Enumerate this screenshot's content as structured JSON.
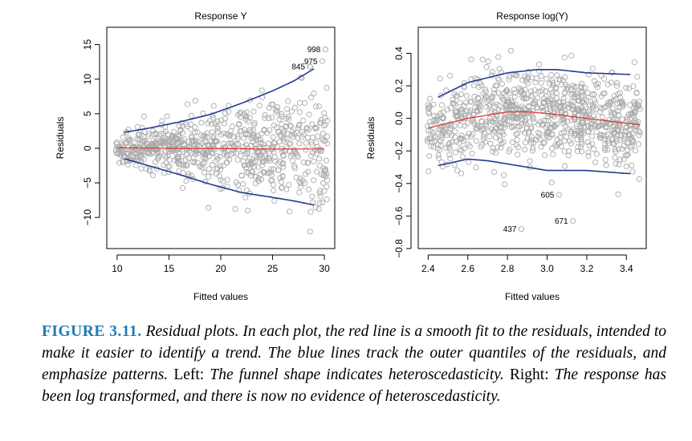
{
  "chart_data": [
    {
      "type": "scatter",
      "title": "Response Y",
      "xlabel": "Fitted values",
      "ylabel": "Residuals",
      "xlim": [
        9,
        31
      ],
      "ylim": [
        -14.5,
        17.5
      ],
      "xticks": [
        10,
        15,
        20,
        25,
        30
      ],
      "yticks": [
        -10,
        -5,
        0,
        5,
        10,
        15
      ],
      "tick_labels_x": [
        "10",
        "15",
        "20",
        "25",
        "30"
      ],
      "tick_labels_y": [
        "−10",
        "−5",
        "0",
        "5",
        "10",
        "15"
      ],
      "point_color": "#a9a9a9",
      "smooth_color": "#e0302b",
      "quantile_color": "#233c93",
      "scatter_cloud": {
        "n": 760,
        "x_range": [
          9.8,
          30.3
        ],
        "spread_model": "funnel",
        "spread_at_min": 1.6,
        "spread_at_max": 8.5
      },
      "smooth_line": {
        "x": [
          10,
          15,
          20,
          25,
          30
        ],
        "y": [
          0.1,
          0.0,
          -0.05,
          -0.1,
          -0.1
        ]
      },
      "upper_quantile": {
        "x": [
          10.7,
          13,
          16,
          19,
          22,
          25,
          27,
          29
        ],
        "y": [
          2.3,
          2.9,
          3.8,
          4.9,
          6.5,
          8.3,
          9.7,
          11.5
        ]
      },
      "lower_quantile": {
        "x": [
          10.7,
          13,
          16,
          19,
          22,
          25,
          27,
          29
        ],
        "y": [
          -1.5,
          -2.5,
          -3.8,
          -5.2,
          -6.4,
          -7.1,
          -7.6,
          -8.2
        ]
      },
      "outliers": [
        {
          "label": "998",
          "x": 30.1,
          "y": 14.3
        },
        {
          "label": "975",
          "x": 29.8,
          "y": 12.6
        },
        {
          "label": "845",
          "x": 28.6,
          "y": 11.8
        }
      ]
    },
    {
      "type": "scatter",
      "title": "Response log(Y)",
      "xlabel": "Fitted values",
      "ylabel": "Residuals",
      "xlim": [
        2.35,
        3.5
      ],
      "ylim": [
        -0.8,
        0.56
      ],
      "xticks": [
        2.4,
        2.6,
        2.8,
        3.0,
        3.2,
        3.4
      ],
      "yticks": [
        -0.8,
        -0.6,
        -0.4,
        -0.2,
        0.0,
        0.2,
        0.4
      ],
      "tick_labels_x": [
        "2.4",
        "2.6",
        "2.8",
        "3.0",
        "3.2",
        "3.4"
      ],
      "tick_labels_y": [
        "−0.8",
        "−0.6",
        "−0.4",
        "−0.2",
        "0.0",
        "0.2",
        "0.4"
      ],
      "point_color": "#a9a9a9",
      "smooth_color": "#e0302b",
      "quantile_color": "#233c93",
      "scatter_cloud": {
        "n": 900,
        "x_range": [
          2.39,
          3.47
        ],
        "spread_model": "constant",
        "center_curve": "smooth_line",
        "sd": 0.14
      },
      "smooth_line": {
        "x": [
          2.4,
          2.6,
          2.8,
          2.9,
          3.0,
          3.2,
          3.47
        ],
        "y": [
          -0.06,
          0.0,
          0.04,
          0.04,
          0.03,
          0.0,
          -0.04
        ]
      },
      "upper_quantile": {
        "x": [
          2.45,
          2.6,
          2.8,
          2.95,
          3.05,
          3.2,
          3.42
        ],
        "y": [
          0.13,
          0.22,
          0.28,
          0.3,
          0.3,
          0.28,
          0.27
        ]
      },
      "lower_quantile": {
        "x": [
          2.45,
          2.6,
          2.7,
          2.85,
          3.0,
          3.2,
          3.42
        ],
        "y": [
          -0.29,
          -0.25,
          -0.26,
          -0.29,
          -0.32,
          -0.32,
          -0.34
        ]
      },
      "outliers": [
        {
          "label": "605",
          "x": 3.06,
          "y": -0.47
        },
        {
          "label": "671",
          "x": 3.13,
          "y": -0.63
        },
        {
          "label": "437",
          "x": 2.87,
          "y": -0.68
        }
      ]
    }
  ],
  "caption": {
    "figure_label": "FIGURE 3.11.",
    "text1": " Residual plots. In each plot, the red line is a smooth fit to the residuals, intended to make it easier to identify a trend. The blue lines track the outer quantiles of the residuals, and emphasize patterns.",
    "left_label": " Left:",
    "text2": " The funnel shape indicates heteroscedasticity.",
    "right_label": " Right:",
    "text3": " The response has been log transformed, and there is now no evidence of heteroscedasticity."
  }
}
